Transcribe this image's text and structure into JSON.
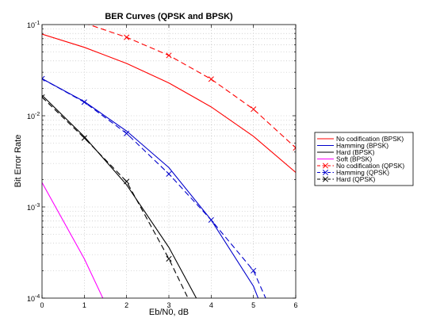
{
  "chart_data": {
    "type": "line",
    "title": "BER Curves (QPSK and BPSK)",
    "xlabel": "Eb/N0, dB",
    "ylabel": "Bit Error Rate",
    "xlim": [
      0,
      6
    ],
    "ylim": [
      0.0001,
      0.1
    ],
    "yscale": "log",
    "grid": true,
    "legend_position": "outside-right",
    "x_ticks": [
      "0",
      "1",
      "2",
      "3",
      "4",
      "5",
      "6"
    ],
    "y_ticks": [
      {
        "base": "10",
        "exp": "-4",
        "value": 0.0001
      },
      {
        "base": "10",
        "exp": "-3",
        "value": 0.001
      },
      {
        "base": "10",
        "exp": "-2",
        "value": 0.01
      },
      {
        "base": "10",
        "exp": "-1",
        "value": 0.1
      }
    ],
    "series": [
      {
        "name": "No codification (BPSK)",
        "color": "#ff0000",
        "dash": "solid",
        "marker": "none",
        "x": [
          0,
          1,
          2,
          3,
          4,
          5,
          6
        ],
        "y": [
          0.0786,
          0.0563,
          0.0375,
          0.0229,
          0.0125,
          0.00595,
          0.00239
        ]
      },
      {
        "name": "Hamming (BPSK)",
        "color": "#0000cc",
        "dash": "solid",
        "marker": "none",
        "x": [
          0,
          1,
          2,
          3,
          4,
          5,
          5.3
        ],
        "y": [
          0.0255,
          0.0143,
          0.0068,
          0.0027,
          0.00072,
          0.000135,
          6e-05
        ]
      },
      {
        "name": "Hard (BPSK)",
        "color": "#000000",
        "dash": "solid",
        "marker": "none",
        "x": [
          0,
          1,
          2,
          3,
          4
        ],
        "y": [
          0.0168,
          0.0059,
          0.00175,
          0.00036,
          5e-05
        ]
      },
      {
        "name": "Soft (BPSK)",
        "color": "#ff00ff",
        "dash": "solid",
        "marker": "none",
        "x": [
          0,
          1,
          2
        ],
        "y": [
          0.00185,
          0.00027,
          2.8e-05
        ]
      },
      {
        "name": "No codification (QPSK)",
        "color": "#ff0000",
        "dash": "dashed",
        "marker": "x",
        "x": [
          1,
          2,
          3,
          4,
          5,
          6
        ],
        "y": [
          0.104,
          0.0725,
          0.0459,
          0.0252,
          0.0118,
          0.00445
        ]
      },
      {
        "name": "Hamming (QPSK)",
        "color": "#0000cc",
        "dash": "dashed",
        "marker": "x",
        "x": [
          0,
          1,
          2,
          3,
          4,
          5,
          5.5
        ],
        "y": [
          0.0255,
          0.0141,
          0.0064,
          0.0023,
          0.00072,
          0.0002,
          6e-05
        ]
      },
      {
        "name": "Hard (QPSK)",
        "color": "#000000",
        "dash": "dashed",
        "marker": "x",
        "x": [
          0,
          1,
          2,
          3,
          4
        ],
        "y": [
          0.016,
          0.0057,
          0.0019,
          0.00027,
          3e-05
        ]
      }
    ]
  }
}
